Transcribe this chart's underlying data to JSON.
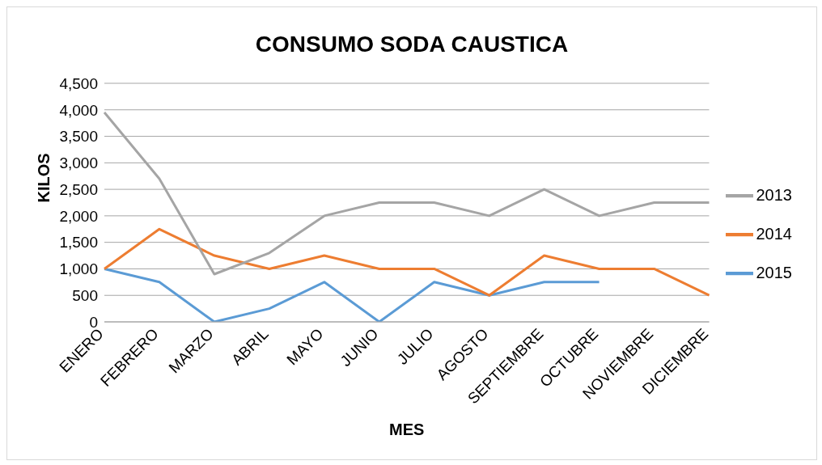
{
  "chart_data": {
    "type": "line",
    "title": "CONSUMO SODA CAUSTICA",
    "xlabel": "MES",
    "ylabel": "KILOS",
    "categories": [
      "ENERO",
      "FEBRERO",
      "MARZO",
      "ABRIL",
      "MAYO",
      "JUNIO",
      "JULIO",
      "AGOSTO",
      "SEPTIEMBRE",
      "OCTUBRE",
      "NOVIEMBRE",
      "DICIEMBRE"
    ],
    "series": [
      {
        "name": "2015",
        "color": "#5b9bd5",
        "values": [
          1000,
          750,
          0,
          250,
          750,
          0,
          750,
          500,
          750,
          750,
          null,
          null
        ]
      },
      {
        "name": "2014",
        "color": "#ed7d31",
        "values": [
          1000,
          1750,
          1250,
          1000,
          1250,
          1000,
          1000,
          500,
          1250,
          1000,
          1000,
          500
        ]
      },
      {
        "name": "2013",
        "color": "#a5a5a5",
        "values": [
          3950,
          2700,
          900,
          1300,
          2000,
          2250,
          2250,
          2000,
          2500,
          2000,
          2250,
          2250
        ]
      }
    ],
    "ylim": [
      0,
      4500
    ],
    "yticks": [
      0,
      500,
      {
        "value": 1000,
        "label": "1,000"
      },
      {
        "value": 1500,
        "label": "1,500"
      },
      {
        "value": 2000,
        "label": "2,000"
      },
      {
        "value": 2500,
        "label": "2,500"
      },
      {
        "value": 3000,
        "label": "3,000"
      },
      {
        "value": 3500,
        "label": "3,500"
      },
      {
        "value": 4000,
        "label": "4,000"
      },
      {
        "value": 4500,
        "label": "4,500"
      }
    ],
    "grid": "y",
    "legend": "right",
    "marker": "none",
    "line_style": "solid"
  }
}
